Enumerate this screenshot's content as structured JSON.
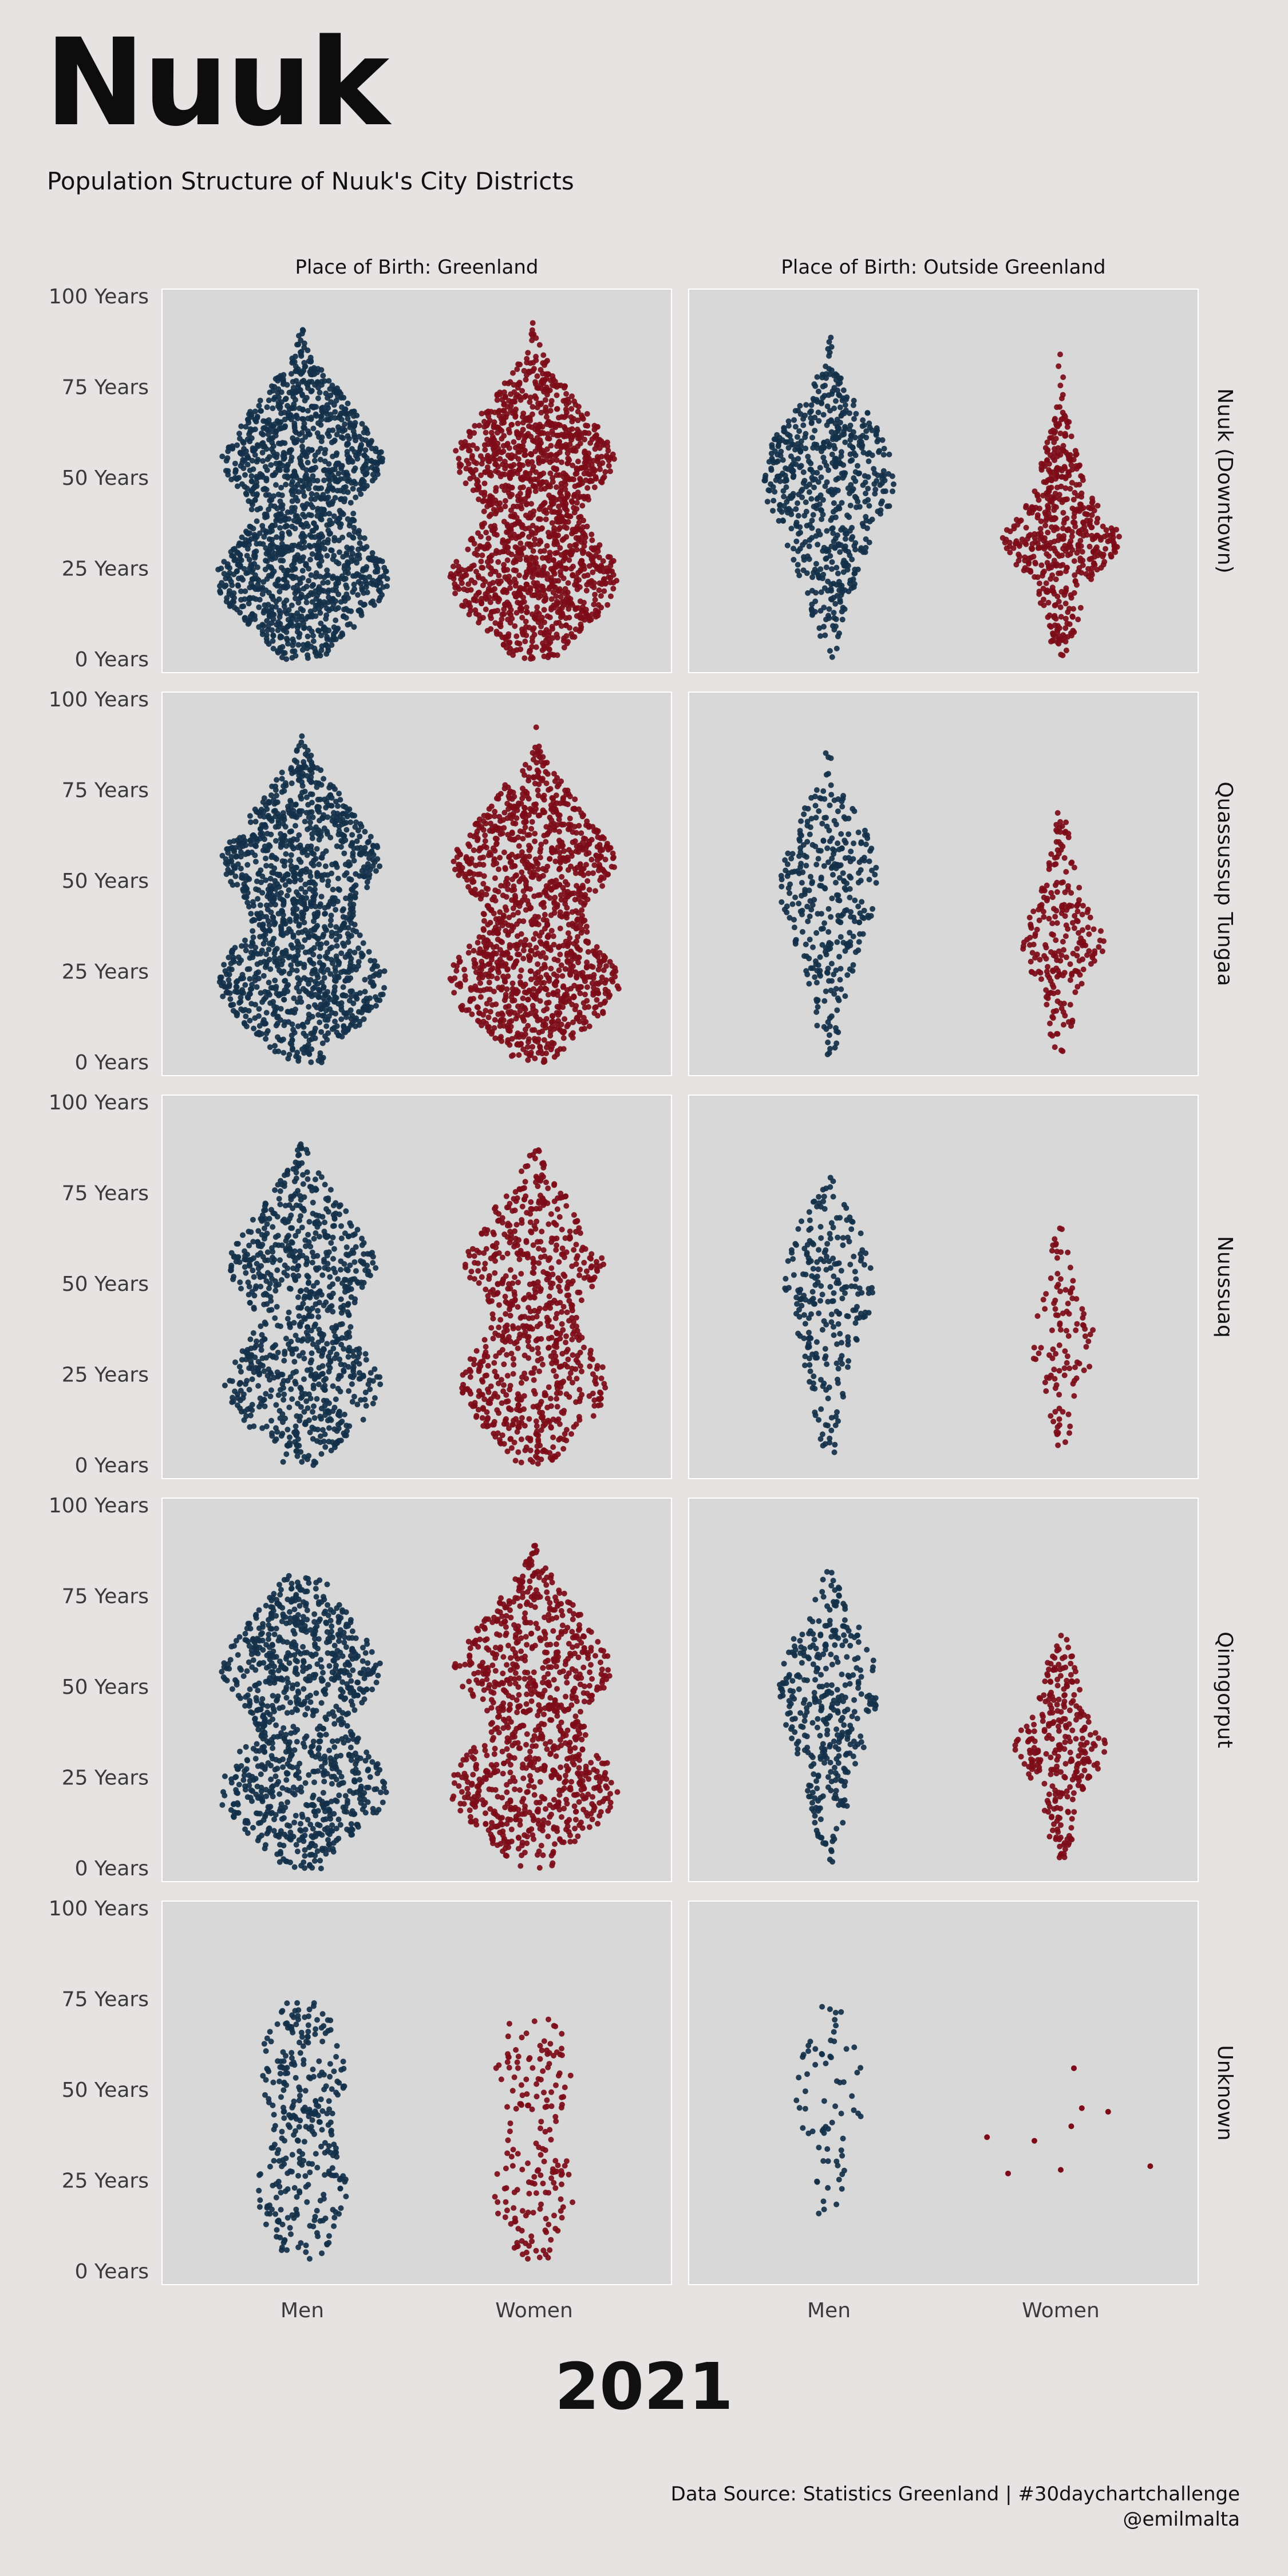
{
  "title": "Nuuk",
  "subtitle": "Population Structure of Nuuk's City Districts",
  "year": "2021",
  "caption": {
    "line1": "Data Source: Statistics Greenland | #30daychartchallenge",
    "line2": "@emilmalta"
  },
  "chart_data": {
    "type": "scatter",
    "subtype": "beeswarm (faceted)",
    "facet_columns": [
      "Place of Birth: Greenland",
      "Place of Birth: Outside Greenland"
    ],
    "facet_rows": [
      "Nuuk (Downtown)",
      "Quassussup Tungaa",
      "Nuussuaq",
      "Qinngorput",
      "Unknown"
    ],
    "categories": [
      "Men",
      "Women"
    ],
    "y_ticks": [
      0,
      25,
      50,
      75,
      100
    ],
    "y_tick_labels": [
      "0 Years",
      "25 Years",
      "50 Years",
      "75 Years",
      "100 Years"
    ],
    "ylim": [
      0,
      100
    ],
    "y_unit": "Years",
    "grid": false,
    "legend": "none",
    "colors": {
      "Men": "#13304a",
      "Women": "#7d0c18",
      "panel": "#d8d8d8",
      "background": "#e6e3e2"
    },
    "approx_point_counts": [
      [
        {
          "Men": 1500,
          "Women": 1500
        },
        {
          "Men": 620,
          "Women": 520
        }
      ],
      [
        {
          "Men": 1300,
          "Women": 1300
        },
        {
          "Men": 330,
          "Women": 230
        }
      ],
      [
        {
          "Men": 860,
          "Women": 760
        },
        {
          "Men": 250,
          "Women": 110
        }
      ],
      [
        {
          "Men": 1000,
          "Women": 950
        },
        {
          "Men": 360,
          "Women": 290
        }
      ],
      [
        {
          "Men": 320,
          "Women": 180
        },
        {
          "Men": 70,
          "Women": 9
        }
      ]
    ],
    "age_range_approx": [
      [
        {
          "Men": [
            0,
            91
          ],
          "Women": [
            0,
            95
          ]
        },
        {
          "Men": [
            0,
            89
          ],
          "Women": [
            0,
            87
          ]
        }
      ],
      [
        {
          "Men": [
            0,
            97
          ],
          "Women": [
            0,
            95
          ]
        },
        {
          "Men": [
            2,
            89
          ],
          "Women": [
            2,
            73
          ]
        }
      ],
      [
        {
          "Men": [
            0,
            91
          ],
          "Women": [
            0,
            87
          ]
        },
        {
          "Men": [
            2,
            83
          ],
          "Women": [
            4,
            68
          ]
        }
      ],
      [
        {
          "Men": [
            0,
            81
          ],
          "Women": [
            0,
            91
          ]
        },
        {
          "Men": [
            0,
            82
          ],
          "Women": [
            3,
            65
          ]
        }
      ],
      [
        {
          "Men": [
            2,
            74
          ],
          "Women": [
            2,
            70
          ]
        },
        {
          "Men": [
            12,
            77
          ],
          "Women": [
            27,
            56
          ]
        }
      ]
    ],
    "unknown_outside_women_points": [
      {
        "x": -0.28,
        "y": 37
      },
      {
        "x": -0.2,
        "y": 27
      },
      {
        "x": -0.1,
        "y": 36
      },
      {
        "x": 0.0,
        "y": 28
      },
      {
        "x": 0.04,
        "y": 40
      },
      {
        "x": 0.05,
        "y": 56
      },
      {
        "x": 0.08,
        "y": 45
      },
      {
        "x": 0.18,
        "y": 44
      },
      {
        "x": 0.34,
        "y": 29
      }
    ]
  }
}
